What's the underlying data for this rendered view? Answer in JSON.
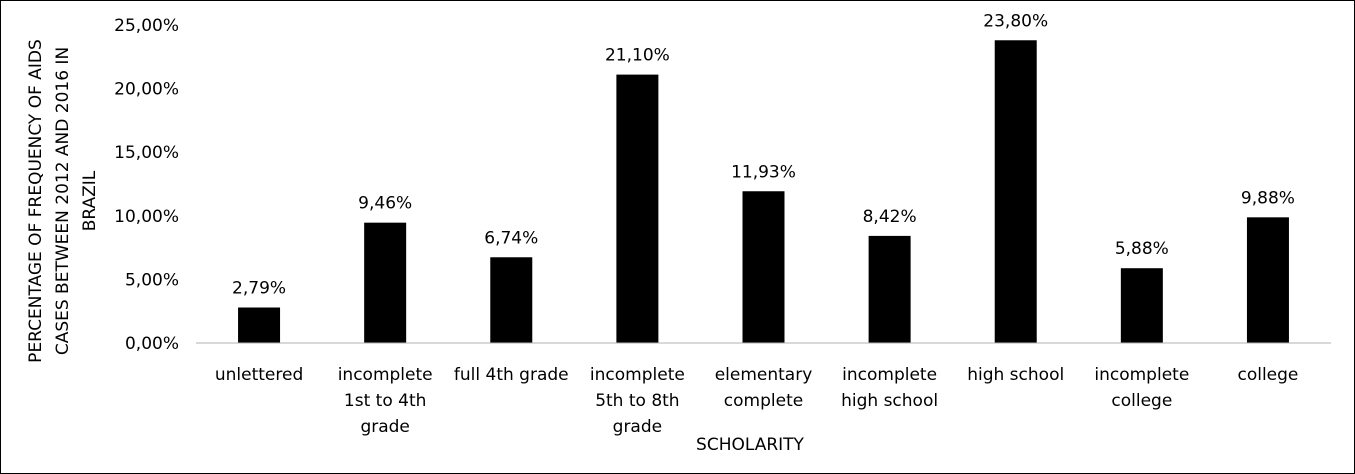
{
  "chart_data": {
    "type": "bar",
    "title": "",
    "xlabel": "SCHOLARITY",
    "ylabel_lines": [
      "PERCENTAGE OF FREQUENCY OF AIDS",
      "CASES  BETWEEN 2012 AND 2016 IN",
      "BRAZIL"
    ],
    "categories": [
      [
        "unlettered"
      ],
      [
        "incomplete",
        "1st to 4th",
        "grade"
      ],
      [
        "full 4th grade"
      ],
      [
        "incomplete",
        "5th to 8th",
        "grade"
      ],
      [
        "elementary",
        "complete"
      ],
      [
        "incomplete",
        "high school"
      ],
      [
        "high school"
      ],
      [
        "incomplete",
        "college"
      ],
      [
        "college"
      ]
    ],
    "values": [
      2.79,
      9.46,
      6.74,
      21.1,
      11.93,
      8.42,
      23.8,
      5.88,
      9.88
    ],
    "value_labels": [
      "2,79%",
      "9,46%",
      "6,74%",
      "21,10%",
      "11,93%",
      "8,42%",
      "23,80%",
      "5,88%",
      "9,88%"
    ],
    "ylim": [
      0,
      25
    ],
    "yticks": [
      0,
      5,
      10,
      15,
      20,
      25
    ],
    "ytick_labels": [
      "0,00%",
      "5,00%",
      "10,00%",
      "15,00%",
      "20,00%",
      "25,00%"
    ],
    "grid": false,
    "bar_color": "#000000"
  }
}
